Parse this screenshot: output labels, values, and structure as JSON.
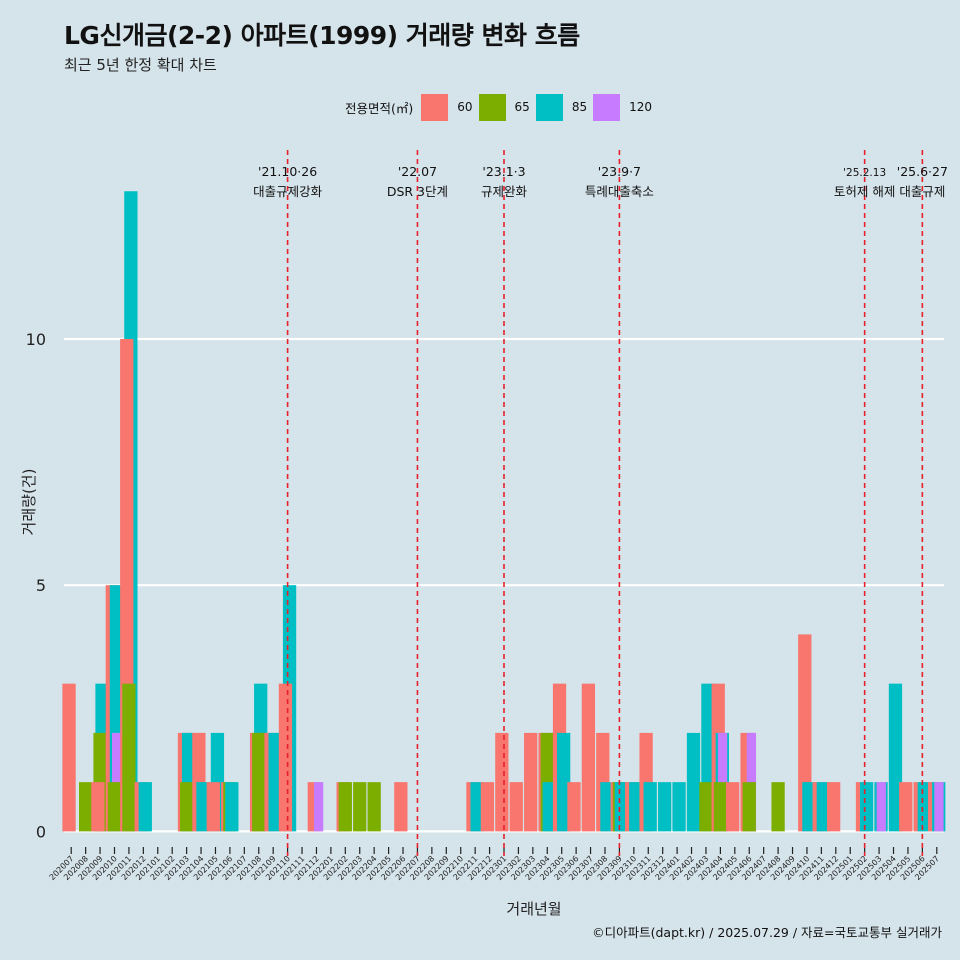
{
  "title": "LG신개금(2-2) 아파트(1999) 거래량 변화 흐름",
  "subtitle": "최근 5년 한정 확대 차트",
  "caption": "©디아파트(dapt.kr) / 2025.07.29 / 자료=국토교통부 실거래가",
  "colors": {
    "background": "#d5e3ea",
    "grid": "#ffffff",
    "event_line": "#e8202a"
  },
  "chart_data": {
    "type": "bar",
    "title": "LG신개금(2-2) 아파트(1999) 거래량 변화 흐름",
    "xlabel": "거래년월",
    "ylabel": "거래량(건)",
    "ylim": [
      -0.5,
      14
    ],
    "yticks": [
      0,
      5,
      10
    ],
    "legend_title": "전용면적(㎡)",
    "legend_position": "top",
    "series": [
      {
        "name": "60",
        "color": "#f8766d"
      },
      {
        "name": "65",
        "color": "#7cae00"
      },
      {
        "name": "85",
        "color": "#00bfc4"
      },
      {
        "name": "120",
        "color": "#c77cff"
      }
    ],
    "months": [
      "202007",
      "202008",
      "202009",
      "202010",
      "202011",
      "202012",
      "202101",
      "202102",
      "202103",
      "202104",
      "202105",
      "202106",
      "202107",
      "202108",
      "202109",
      "202110",
      "202111",
      "202112",
      "202201",
      "202202",
      "202203",
      "202204",
      "202205",
      "202206",
      "202207",
      "202208",
      "202209",
      "202210",
      "202211",
      "202212",
      "202301",
      "202302",
      "202303",
      "202304",
      "202305",
      "202306",
      "202307",
      "202308",
      "202309",
      "202310",
      "202311",
      "202312",
      "202401",
      "202402",
      "202403",
      "202404",
      "202405",
      "202406",
      "202407",
      "202408",
      "202409",
      "202410",
      "202411",
      "202412",
      "202501",
      "202502",
      "202503",
      "202504",
      "202505",
      "202506",
      "202507"
    ],
    "data": {
      "202007": {
        "60": 3
      },
      "202008": {
        "65": 1
      },
      "202009": {
        "60": 1,
        "65": 2,
        "85": 3
      },
      "202010": {
        "60": 5,
        "65": 1,
        "85": 5,
        "120": 2
      },
      "202011": {
        "60": 10,
        "65": 3,
        "85": 13
      },
      "202012": {
        "60": 1,
        "85": 1
      },
      "202101": {},
      "202102": {},
      "202103": {
        "60": 2,
        "65": 1,
        "85": 2
      },
      "202104": {
        "60": 2,
        "85": 1
      },
      "202105": {
        "60": 1,
        "85": 2
      },
      "202106": {
        "60": 1,
        "65": 1,
        "85": 1
      },
      "202107": {},
      "202108": {
        "60": 2,
        "65": 2,
        "85": 3
      },
      "202109": {
        "60": 2,
        "85": 2
      },
      "202110": {
        "60": 3,
        "85": 5
      },
      "202111": {},
      "202112": {
        "60": 1,
        "120": 1
      },
      "202201": {},
      "202202": {
        "60": 1,
        "65": 1
      },
      "202203": {
        "65": 1
      },
      "202204": {
        "65": 1
      },
      "202205": {},
      "202206": {
        "60": 1
      },
      "202207": {},
      "202208": {},
      "202209": {},
      "202210": {},
      "202211": {
        "60": 1,
        "85": 1
      },
      "202212": {
        "60": 1
      },
      "202301": {
        "60": 2
      },
      "202302": {
        "60": 1
      },
      "202303": {
        "60": 2
      },
      "202304": {
        "60": 2,
        "65": 2,
        "85": 1
      },
      "202305": {
        "60": 3,
        "85": 2
      },
      "202306": {
        "60": 1
      },
      "202307": {
        "60": 3
      },
      "202308": {
        "60": 2,
        "85": 1
      },
      "202309": {
        "60": 1,
        "65": 1,
        "85": 1
      },
      "202310": {
        "60": 1,
        "85": 1
      },
      "202311": {
        "60": 2,
        "85": 1
      },
      "202312": {
        "85": 1
      },
      "202401": {
        "85": 1
      },
      "202402": {
        "85": 2
      },
      "202403": {
        "65": 1,
        "85": 3
      },
      "202404": {
        "60": 3,
        "65": 1,
        "85": 2,
        "120": 2
      },
      "202405": {
        "60": 1
      },
      "202406": {
        "60": 2,
        "65": 1,
        "120": 2
      },
      "202407": {},
      "202408": {
        "65": 1
      },
      "202409": {},
      "202410": {
        "60": 4,
        "85": 1
      },
      "202411": {
        "60": 1,
        "85": 1
      },
      "202412": {
        "60": 1
      },
      "202501": {},
      "202502": {
        "60": 1,
        "85": 1
      },
      "202503": {
        "85": 1,
        "120": 1
      },
      "202504": {
        "85": 3
      },
      "202505": {
        "60": 1
      },
      "202506": {
        "60": 1,
        "85": 1
      },
      "202507": {
        "60": 1,
        "85": 1,
        "120": 1
      }
    },
    "events": [
      {
        "month": "202110",
        "date": "'21.10·26",
        "label": "대출규제강화"
      },
      {
        "month": "202207",
        "date": "'22.07",
        "label": "DSR 3단계"
      },
      {
        "month": "202301",
        "date": "'23.1·3",
        "label": "규제완화"
      },
      {
        "month": "202309",
        "date": "'23.9·7",
        "label": "특례대출축소"
      },
      {
        "month": "202502",
        "date": "'25.2.13",
        "label": "토허제 해제"
      },
      {
        "month": "202506",
        "date": "'25.6·27",
        "label": "대출규제"
      }
    ]
  }
}
